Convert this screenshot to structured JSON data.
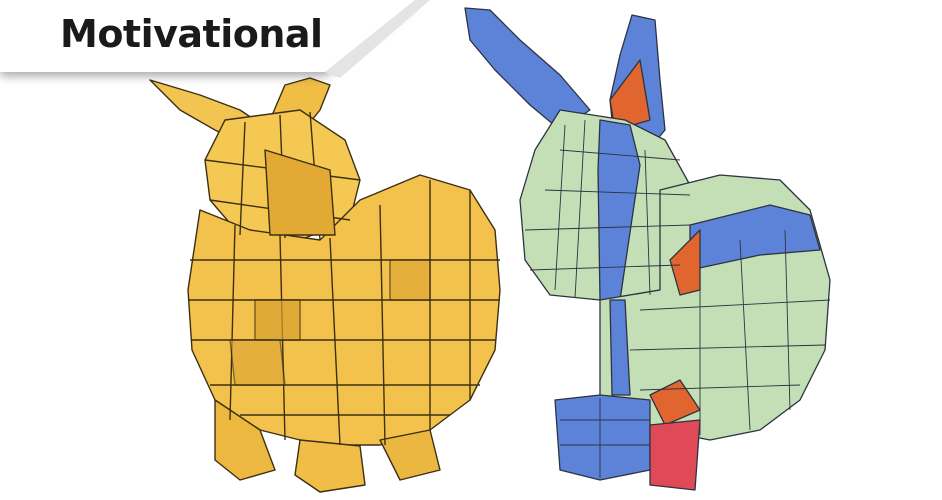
{
  "banner": {
    "title": "Motivational"
  },
  "figure": {
    "left_model": {
      "subject": "bunny",
      "style": "faceted mesh",
      "color": "#f1c04f",
      "edge_color": "#3d2f14"
    },
    "right_model": {
      "subject": "bunny",
      "style": "quad layout",
      "colors": {
        "green": "#c4dfb6",
        "blue": "#5d83d8",
        "orange": "#e0652f",
        "red": "#e04a58",
        "edge": "#2c3340"
      }
    }
  }
}
